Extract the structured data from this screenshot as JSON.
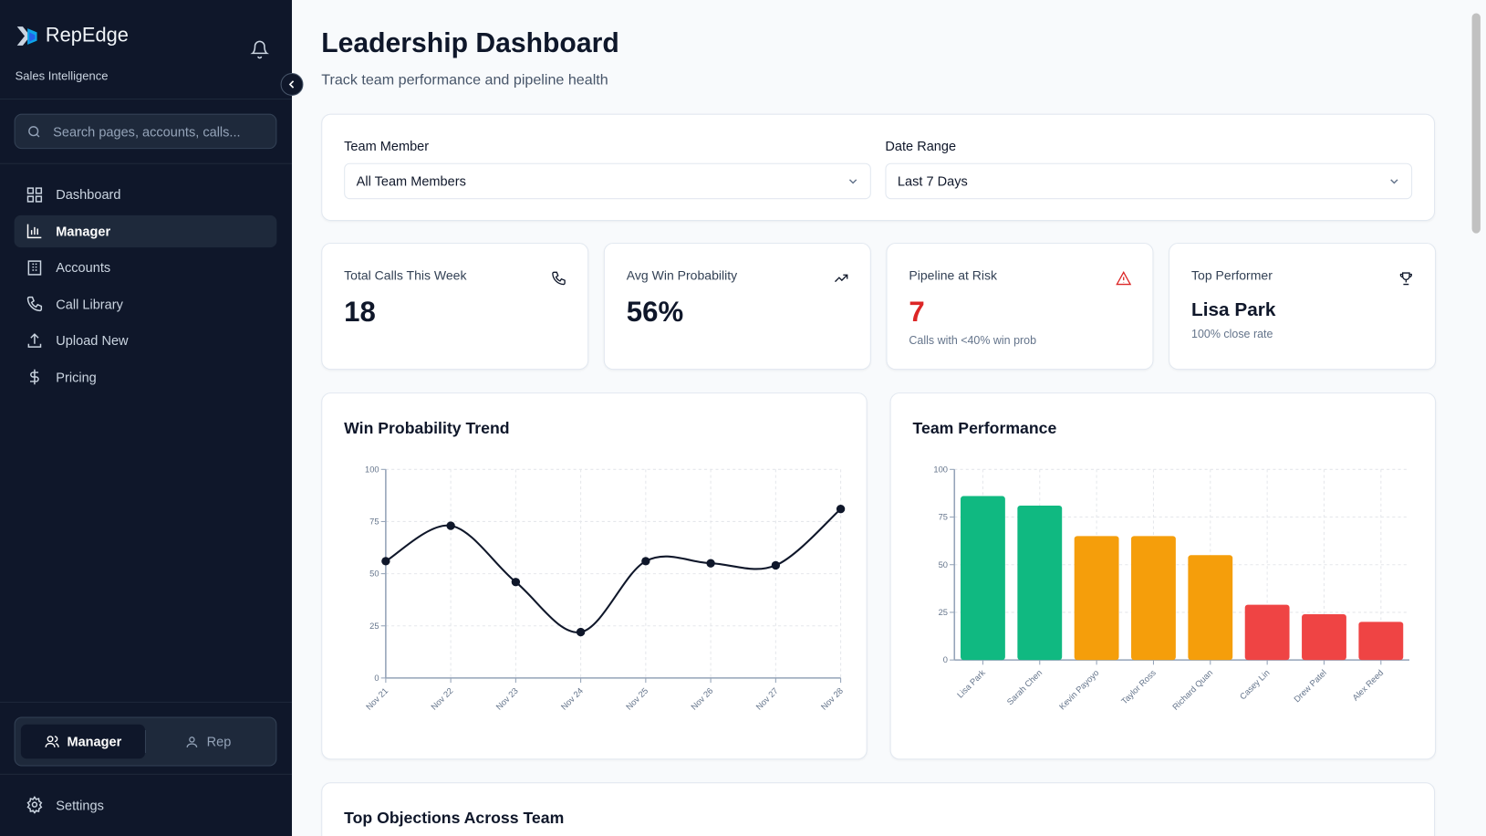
{
  "app": {
    "name": "RepEdge",
    "tagline": "Sales Intelligence"
  },
  "search": {
    "placeholder": "Search pages, accounts, calls..."
  },
  "nav": [
    {
      "label": "Dashboard",
      "icon": "grid-icon"
    },
    {
      "label": "Manager",
      "icon": "bar-chart-icon",
      "active": true
    },
    {
      "label": "Accounts",
      "icon": "building-icon"
    },
    {
      "label": "Call Library",
      "icon": "phone-icon"
    },
    {
      "label": "Upload New",
      "icon": "upload-icon"
    },
    {
      "label": "Pricing",
      "icon": "dollar-icon"
    }
  ],
  "role_toggle": {
    "manager": "Manager",
    "rep": "Rep",
    "selected": "Manager"
  },
  "settings": "Settings",
  "page": {
    "title": "Leadership Dashboard",
    "subtitle": "Track team performance and pipeline health"
  },
  "filters": {
    "team_label": "Team Member",
    "team_value": "All Team Members",
    "date_label": "Date Range",
    "date_value": "Last 7 Days"
  },
  "kpis": [
    {
      "title": "Total Calls This Week",
      "value": "18",
      "icon": "phone-icon"
    },
    {
      "title": "Avg Win Probability",
      "value": "56%",
      "icon": "trending-up-icon"
    },
    {
      "title": "Pipeline at Risk",
      "value": "7",
      "sub": "Calls with <40% win prob",
      "icon": "alert-triangle-icon",
      "color": "#dc2626"
    },
    {
      "title": "Top Performer",
      "value": "Lisa Park",
      "sub": "100% close rate",
      "icon": "trophy-icon"
    }
  ],
  "colors": {
    "green": "#10b981",
    "amber": "#f59e0b",
    "red": "#ef4444",
    "line": "#0f172a"
  },
  "chart_data": [
    {
      "type": "line",
      "title": "Win Probability Trend",
      "categories": [
        "Nov 21",
        "Nov 22",
        "Nov 23",
        "Nov 24",
        "Nov 25",
        "Nov 26",
        "Nov 27",
        "Nov 28"
      ],
      "values": [
        56,
        73,
        46,
        22,
        56,
        55,
        54,
        81
      ],
      "ylim": [
        0,
        100
      ],
      "yticks": [
        "0",
        "25",
        "50",
        "75",
        "100"
      ],
      "grid": true
    },
    {
      "type": "bar",
      "title": "Team Performance",
      "categories": [
        "Lisa Park",
        "Sarah Chen",
        "Kevin Payoyo",
        "Taylor Ross",
        "Richard Quan",
        "Casey Lin",
        "Drew Patel",
        "Alex Reed"
      ],
      "values": [
        86,
        81,
        65,
        65,
        55,
        29,
        24,
        20
      ],
      "ylim": [
        0,
        100
      ],
      "yticks": [
        "0",
        "25",
        "50",
        "75",
        "100"
      ],
      "grid": true
    }
  ],
  "objections": {
    "title": "Top Objections Across Team"
  }
}
